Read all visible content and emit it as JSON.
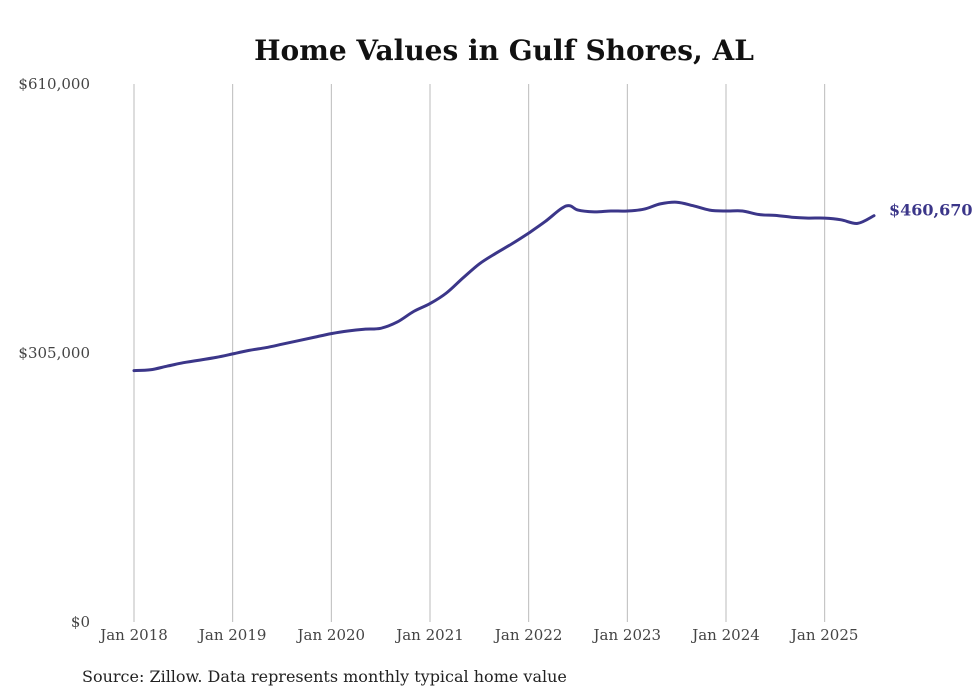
{
  "chart_data": {
    "type": "line",
    "title": "Home Values in Gulf Shores, AL",
    "source": "Source: Zillow. Data represents monthly typical home value",
    "ylim": [
      0,
      610000
    ],
    "y_ticks": [
      {
        "value": 0,
        "label": "$0"
      },
      {
        "value": 305000,
        "label": "$305,000"
      },
      {
        "value": 610000,
        "label": "$610,000"
      }
    ],
    "x_ticks": [
      {
        "value": "2018-01",
        "label": "Jan 2018"
      },
      {
        "value": "2019-01",
        "label": "Jan 2019"
      },
      {
        "value": "2020-01",
        "label": "Jan 2020"
      },
      {
        "value": "2021-01",
        "label": "Jan 2021"
      },
      {
        "value": "2022-01",
        "label": "Jan 2022"
      },
      {
        "value": "2023-01",
        "label": "Jan 2023"
      },
      {
        "value": "2024-01",
        "label": "Jan 2024"
      },
      {
        "value": "2025-01",
        "label": "Jan 2025"
      }
    ],
    "grid": "vertical",
    "line_color": "#3b3689",
    "end_label": "$460,670",
    "series": [
      {
        "x": [
          "2018-01",
          "2018-03",
          "2018-05",
          "2018-07",
          "2018-09",
          "2018-11",
          "2019-01",
          "2019-03",
          "2019-05",
          "2019-07",
          "2019-09",
          "2019-11",
          "2020-01",
          "2020-03",
          "2020-05",
          "2020-07",
          "2020-09",
          "2020-11",
          "2021-01",
          "2021-03",
          "2021-05",
          "2021-07",
          "2021-09",
          "2021-11",
          "2022-01",
          "2022-03",
          "2022-05",
          "2022-06",
          "2022-07",
          "2022-09",
          "2022-11",
          "2023-01",
          "2023-03",
          "2023-05",
          "2023-07",
          "2023-09",
          "2023-11",
          "2024-01",
          "2024-03",
          "2024-05",
          "2024-07",
          "2024-09",
          "2024-11",
          "2025-01",
          "2025-03",
          "2025-05",
          "2025-07"
        ],
        "values": [
          285000,
          286000,
          290000,
          294000,
          297000,
          300000,
          304000,
          308000,
          311000,
          315000,
          319000,
          323000,
          327000,
          330000,
          332000,
          333000,
          340000,
          352000,
          361000,
          373000,
          390000,
          406000,
          418000,
          429000,
          441000,
          454000,
          469000,
          472000,
          467000,
          465000,
          466000,
          466000,
          468000,
          474000,
          476000,
          472000,
          467000,
          466000,
          466000,
          462000,
          461000,
          459000,
          458000,
          458000,
          456000,
          452000,
          460670
        ]
      }
    ]
  }
}
